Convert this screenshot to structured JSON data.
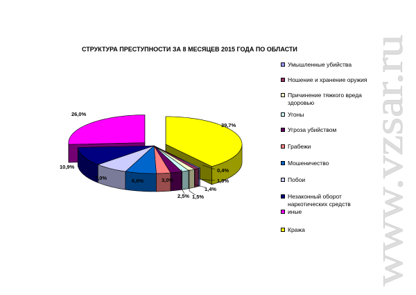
{
  "page": {
    "watermark": "www.vzsar.ru"
  },
  "chart_data": {
    "type": "pie",
    "title": "СТРУКТУРА ПРЕСТУПНОСТИ ЗА 8 МЕСЯЦЕВ 2015 ГОДА ПО ОБЛАСТИ",
    "start_category": "Кража",
    "categories": [
      "Умышленные убийства",
      "Ношение и хранение оружия",
      "Причинение тяжкого вреда здоровью",
      "Угоны",
      "Угроза убийством",
      "Грабежи",
      "Мошеничество",
      "Побои",
      "Незаконный оборот наркотических средств",
      "иные",
      "Кража"
    ],
    "values": [
      0.4,
      1.0,
      1.4,
      1.5,
      2.5,
      3.0,
      6.6,
      7.0,
      10.9,
      26.0,
      39.7
    ],
    "data_labels": [
      "0,4%",
      "1,0%",
      "1,4%",
      "1,5%",
      "2,5%",
      "3,0%",
      "6,6%",
      "7,0%",
      "10,9%",
      "26,0%",
      "39,7%"
    ],
    "colors": [
      "#9999ff",
      "#993366",
      "#ffffcc",
      "#ccffff",
      "#660066",
      "#ff8080",
      "#0066cc",
      "#ccccff",
      "#000080",
      "#ff00ff",
      "#ffff00"
    ],
    "legend": [
      {
        "label": "Умышленные убийства",
        "color": "#9999ff"
      },
      {
        "label": "Ношение и хранение оружия",
        "color": "#993366"
      },
      {
        "label": "Причинение тяжкого вреда здоровью",
        "color": "#ffffcc"
      },
      {
        "label": "Угоны",
        "color": "#ccffff"
      },
      {
        "label": "Угроза убийством",
        "color": "#660066"
      },
      {
        "label": "Грабежи",
        "color": "#ff8080"
      },
      {
        "label": "Мошеничество",
        "color": "#0066cc"
      },
      {
        "label": "Побои",
        "color": "#ccccff"
      },
      {
        "label": "Незаконный оборот наркотических средств",
        "color": "#000080"
      },
      {
        "label": "иные",
        "color": "#ff00ff"
      },
      {
        "label": "Кража",
        "color": "#ffff00"
      }
    ],
    "legend_position": "right",
    "style": "3d-exploded"
  }
}
